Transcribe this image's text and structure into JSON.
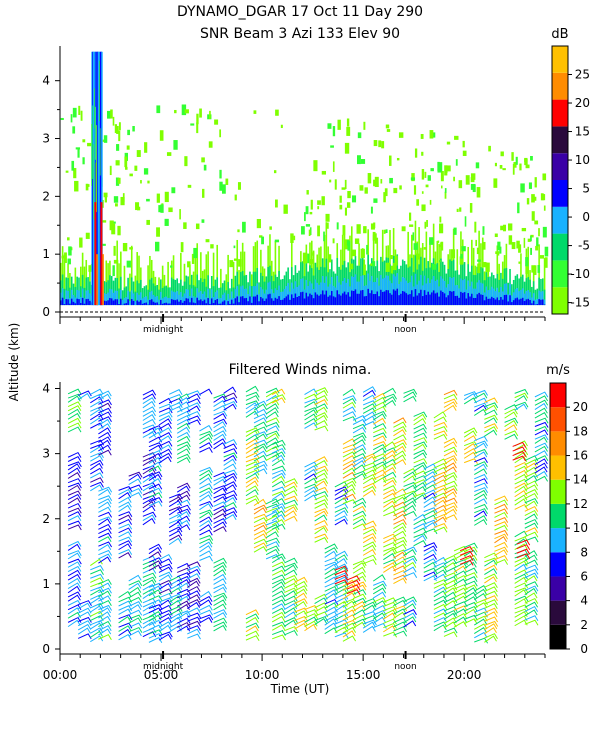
{
  "header": {
    "title_line1": "DYNAMO_DGAR  17 Oct 11 Day 290",
    "title_line2": "SNR Beam 3 Azi 133 Elev 90"
  },
  "chart_data": [
    {
      "type": "heatmap",
      "title": "SNR Beam 3 Azi 133 Elev 90",
      "ylabel": "Altitude (km)",
      "xlim": [
        0,
        24
      ],
      "ylim": [
        0,
        4.6
      ],
      "y_ticks": [
        "0",
        "1",
        "2",
        "3",
        "4"
      ],
      "x_annotations": [
        "midnight",
        "noon"
      ],
      "colorbar": {
        "unit": "dB",
        "ticks": [
          "-15",
          "-10",
          "-5",
          "0",
          "5",
          "10",
          "15",
          "20",
          "25"
        ],
        "bands": [
          "#7fff00",
          "#33ff33",
          "#00d96a",
          "#19b2ff",
          "#0000ff",
          "#3a00a6",
          "#2a0a3c",
          "#ff0000",
          "#ff8c00",
          "#ffc000"
        ],
        "range": [
          -17,
          30
        ]
      },
      "features": [
        {
          "label": "strong echo column",
          "x": [
            1.55,
            2.05
          ],
          "y": [
            0.1,
            4.6
          ]
        },
        {
          "label": "low-level echo layer",
          "x": [
            0,
            24
          ],
          "y": [
            0.1,
            0.9
          ]
        }
      ]
    },
    {
      "type": "scatter",
      "title": "Filtered Winds nima.",
      "xlabel": "Time (UT)",
      "ylabel": "Altitude (km)",
      "xlim": [
        0,
        24
      ],
      "ylim": [
        0,
        4.1
      ],
      "x_ticks": [
        "00:00",
        "05:00",
        "10:00",
        "15:00",
        "20:00"
      ],
      "y_ticks": [
        "0",
        "1",
        "2",
        "3",
        "4"
      ],
      "x_annotations": [
        "midnight",
        "noon"
      ],
      "colorbar": {
        "unit": "m/s",
        "ticks": [
          "0",
          "2",
          "4",
          "6",
          "8",
          "10",
          "12",
          "14",
          "16",
          "18",
          "20"
        ],
        "bands": [
          "#000000",
          "#2a0a3c",
          "#3a00a6",
          "#0000ff",
          "#19b2ff",
          "#00d96a",
          "#7fff00",
          "#ffc000",
          "#ff8c00",
          "#ff5000",
          "#ff0000"
        ],
        "range": [
          0,
          22
        ]
      },
      "wind_columns_hours": [
        0.4,
        0.9,
        1.5,
        1.9,
        2.9,
        3.4,
        4.1,
        4.4,
        4.9,
        5.4,
        5.8,
        6.3,
        6.9,
        7.6,
        8.1,
        8.7,
        9.2,
        9.6,
        10.2,
        10.5,
        11.1,
        11.6,
        12.1,
        12.6,
        13.1,
        13.6,
        14.0,
        14.5,
        15.0,
        15.5,
        16.0,
        16.5,
        17.0,
        17.5,
        18.0,
        18.5,
        19.0,
        19.5,
        20.0,
        20.5,
        21.0,
        21.5,
        22.0,
        22.5,
        23.0,
        23.5
      ]
    }
  ]
}
